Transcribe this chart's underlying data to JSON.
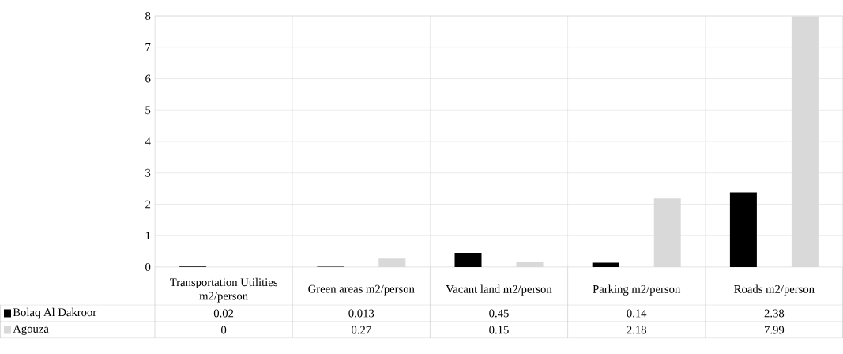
{
  "chart_data": {
    "type": "bar",
    "categories": [
      "Transportation Utilities m2/person",
      "Green areas m2/person",
      "Vacant land m2/person",
      "Parking m2/person",
      "Roads m2/person"
    ],
    "series": [
      {
        "name": "Bolaq Al Dakroor",
        "color": "#000000",
        "values": [
          0.02,
          0.013,
          0.45,
          0.14,
          2.38
        ]
      },
      {
        "name": "Agouza",
        "color": "#d9d9d9",
        "values": [
          0,
          0.27,
          0.15,
          2.18,
          7.99
        ]
      }
    ],
    "ylim": [
      0,
      8
    ],
    "yticks": [
      0,
      1,
      2,
      3,
      4,
      5,
      6,
      7,
      8
    ],
    "grid": true,
    "legend": "bottom",
    "data_labels": true
  }
}
